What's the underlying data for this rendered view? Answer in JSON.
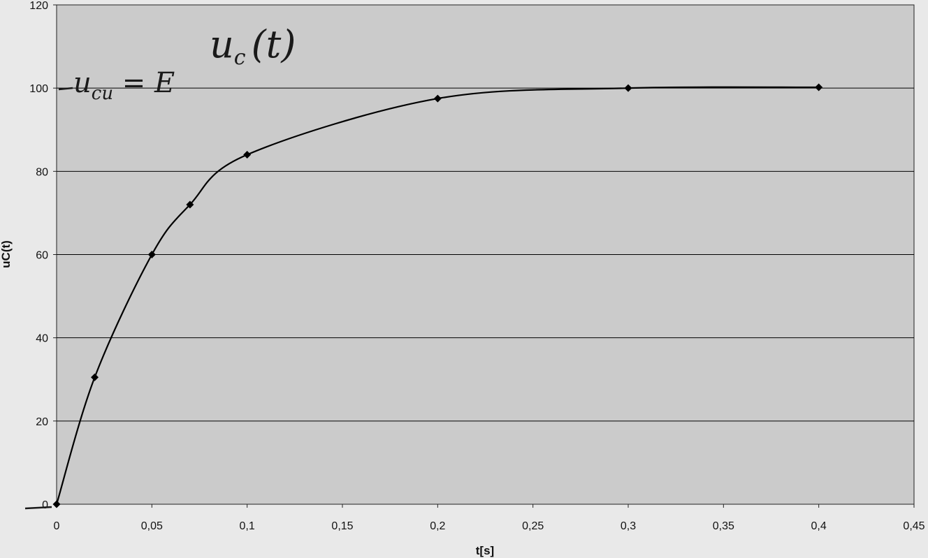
{
  "chart_data": {
    "type": "scatter",
    "title": "",
    "xlabel": "t[s]",
    "ylabel": "uC(t)",
    "xlim": [
      0,
      0.45
    ],
    "ylim": [
      0,
      120
    ],
    "x_ticks": [
      "0",
      "0,05",
      "0,1",
      "0,15",
      "0,2",
      "0,25",
      "0,3",
      "0,35",
      "0,4",
      "0,45"
    ],
    "y_ticks": [
      "0",
      "20",
      "40",
      "60",
      "80",
      "100",
      "120"
    ],
    "grid": "horizontal",
    "legend": "none",
    "marker": "diamond",
    "line": "smooth",
    "series": [
      {
        "x": [
          0,
          0.02,
          0.05,
          0.07,
          0.1,
          0.2,
          0.3,
          0.4
        ],
        "y": [
          0,
          30.5,
          60,
          72,
          84,
          97.5,
          100,
          100.2
        ]
      }
    ],
    "annotations": [
      {
        "text": "u_c (t)",
        "kind": "handwritten"
      },
      {
        "text": "u_cu = E",
        "kind": "handwritten"
      }
    ],
    "colors": {
      "plot_background": "#cbcbcb",
      "line": "#000000",
      "gridline": "#000000"
    }
  }
}
